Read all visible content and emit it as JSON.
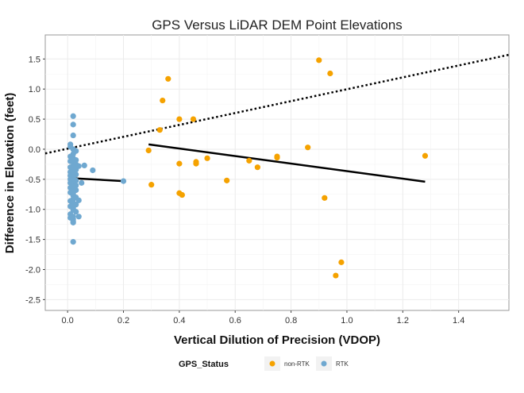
{
  "chart_data": {
    "type": "scatter",
    "title": "GPS Versus LiDAR DEM Point Elevations",
    "xlabel": "Vertical Dilution of Precision (VDOP)",
    "ylabel": "Difference in Elevation (feet)",
    "xlim": [
      -0.08,
      1.58
    ],
    "ylim": [
      -2.68,
      1.9
    ],
    "xticks": [
      0.0,
      0.2,
      0.4,
      0.6,
      0.8,
      1.0,
      1.2,
      1.4
    ],
    "xtick_labels": [
      "0.0",
      "0.2",
      "0.4",
      "0.6",
      "0.8",
      "1.0",
      "1.2",
      "1.4"
    ],
    "yticks": [
      -2.5,
      -2.0,
      -1.5,
      -1.0,
      -0.5,
      0.0,
      0.5,
      1.0,
      1.5
    ],
    "ytick_labels": [
      "-2.5",
      "-2.0",
      "-1.5",
      "-1.0",
      "-0.5",
      "0.0",
      "0.5",
      "1.0",
      "1.5"
    ],
    "grid": true,
    "legend": {
      "title": "GPS_Status",
      "position": "bottom",
      "entries": [
        {
          "label": "non-RTK",
          "color": "#F5A200"
        },
        {
          "label": "RTK",
          "color": "#6FA8D0"
        }
      ]
    },
    "series": [
      {
        "name": "non-RTK",
        "color": "#F5A200",
        "x": [
          0.9,
          0.94,
          0.36,
          0.34,
          0.33,
          0.4,
          0.45,
          0.29,
          0.4,
          0.46,
          0.46,
          0.5,
          0.65,
          0.68,
          0.75,
          0.75,
          0.86,
          1.28,
          0.3,
          0.4,
          0.41,
          0.57,
          0.92,
          0.98,
          0.96
        ],
        "y": [
          1.48,
          1.26,
          1.17,
          0.81,
          0.32,
          0.5,
          0.5,
          -0.02,
          -0.24,
          -0.21,
          -0.24,
          -0.15,
          -0.19,
          -0.3,
          -0.14,
          -0.12,
          0.03,
          -0.11,
          -0.59,
          -0.73,
          -0.76,
          -0.52,
          -0.81,
          -1.88,
          -2.1
        ]
      },
      {
        "name": "RTK",
        "color": "#6FA8D0",
        "x": [
          0.02,
          0.02,
          0.02,
          0.01,
          0.01,
          0.02,
          0.03,
          0.02,
          0.01,
          0.02,
          0.03,
          0.01,
          0.02,
          0.03,
          0.02,
          0.01,
          0.02,
          0.03,
          0.02,
          0.01,
          0.02,
          0.03,
          0.01,
          0.02,
          0.02,
          0.01,
          0.03,
          0.02,
          0.01,
          0.02,
          0.03,
          0.02,
          0.01,
          0.02,
          0.03,
          0.02,
          0.01,
          0.02,
          0.02,
          0.03,
          0.02,
          0.01,
          0.02,
          0.03,
          0.01,
          0.02,
          0.02,
          0.03,
          0.01,
          0.02,
          0.02,
          0.02,
          0.01,
          0.02,
          0.02,
          0.04,
          0.05,
          0.06,
          0.09,
          0.04,
          0.04,
          0.2
        ],
        "y": [
          0.55,
          0.41,
          0.23,
          0.08,
          0.04,
          0.0,
          -0.03,
          -0.08,
          -0.12,
          -0.15,
          -0.18,
          -0.2,
          -0.22,
          -0.25,
          -0.28,
          -0.3,
          -0.32,
          -0.34,
          -0.36,
          -0.38,
          -0.4,
          -0.42,
          -0.44,
          -0.46,
          -0.48,
          -0.5,
          -0.52,
          -0.54,
          -0.56,
          -0.58,
          -0.6,
          -0.62,
          -0.64,
          -0.66,
          -0.68,
          -0.7,
          -0.72,
          -0.74,
          -0.77,
          -0.8,
          -0.83,
          -0.86,
          -0.89,
          -0.92,
          -0.95,
          -0.98,
          -1.01,
          -1.04,
          -1.08,
          -1.12,
          -1.16,
          -1.2,
          -1.14,
          -1.22,
          -1.54,
          -0.28,
          -0.56,
          -0.27,
          -0.35,
          -1.12,
          -0.85,
          -0.53
        ]
      }
    ],
    "lines": [
      {
        "name": "overall trend",
        "style": "dotted",
        "x": [
          -0.08,
          1.58
        ],
        "y": [
          -0.07,
          1.57
        ]
      },
      {
        "name": "RTK trend",
        "style": "solid",
        "x": [
          0.01,
          0.2
        ],
        "y": [
          -0.48,
          -0.53
        ]
      },
      {
        "name": "non-RTK trend",
        "style": "solid",
        "x": [
          0.29,
          1.28
        ],
        "y": [
          0.08,
          -0.54
        ]
      }
    ]
  }
}
